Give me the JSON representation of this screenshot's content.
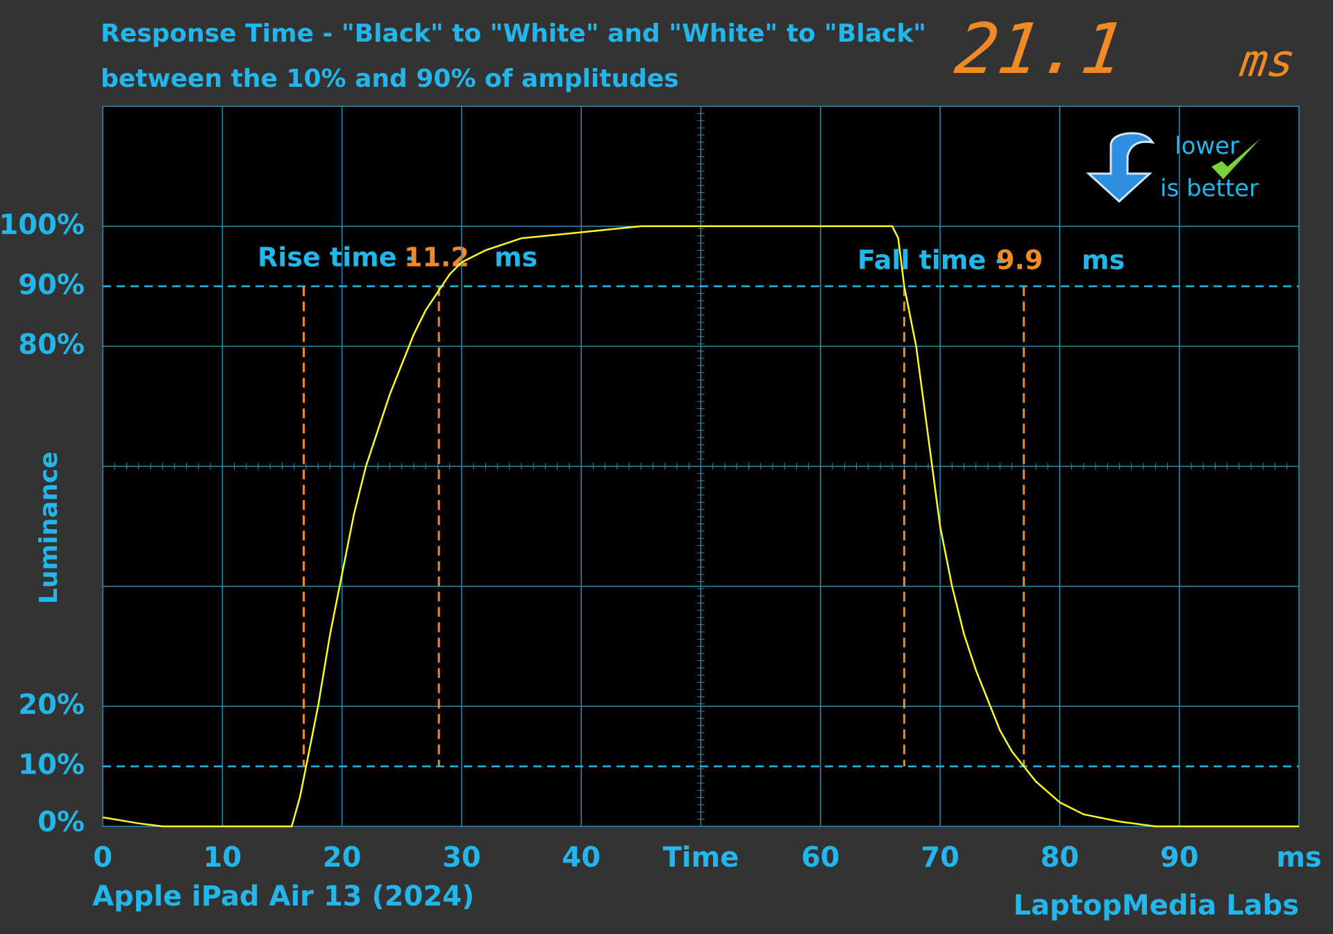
{
  "chart_data": {
    "type": "line",
    "title": "Response Time - \"Black\" to \"White\" and \"White\" to \"Black\"",
    "subtitle": "between the 10% and 90% of amplitudes",
    "headline_value": "21.1",
    "headline_unit": "ms",
    "y_label": "Luminance",
    "device": "Apple iPad Air 13 (2024)",
    "source": "LaptopMedia Labs",
    "badge_line1": "lower",
    "badge_line2": "is better",
    "rise_label": "Rise time -",
    "rise_value": 11.2,
    "rise_unit": "ms",
    "fall_label": "Fall time -",
    "fall_value": 9.9,
    "fall_unit": "ms",
    "color": "#ffff22",
    "x": [
      0,
      3,
      5,
      15.8,
      16.5,
      17,
      18,
      19,
      20,
      21,
      22,
      23,
      24,
      25,
      26,
      27,
      28,
      29,
      30,
      32,
      35,
      40,
      45,
      66,
      66.5,
      67,
      68,
      69,
      70,
      71,
      72,
      73,
      74,
      75,
      76,
      77,
      78,
      80,
      82,
      85,
      88,
      100
    ],
    "values": [
      1.5,
      0.5,
      0,
      0,
      5,
      10,
      20,
      32,
      42,
      52,
      60,
      66,
      72,
      77,
      82,
      86,
      89,
      92,
      94,
      96,
      98,
      99,
      100,
      100,
      98,
      90,
      80,
      65,
      50,
      40,
      32,
      26,
      21,
      16,
      12.5,
      10,
      7.5,
      4,
      2,
      0.8,
      0,
      0
    ],
    "xlim": [
      0,
      100
    ],
    "ylim": [
      0,
      120
    ],
    "xticks": [
      0,
      10,
      20,
      30,
      40,
      {
        "value": 50,
        "label": "Time"
      },
      60,
      70,
      80,
      90,
      {
        "value": 100,
        "label": "ms"
      }
    ],
    "yticks": [
      {
        "value": 0,
        "label": "0%"
      },
      {
        "value": 10,
        "label": "10%"
      },
      {
        "value": 20,
        "label": "20%"
      },
      {
        "value": 80,
        "label": "80%"
      },
      {
        "value": 90,
        "label": "90%"
      },
      {
        "value": 100,
        "label": "100%"
      }
    ],
    "ygrid": [
      0,
      20,
      40,
      60,
      80,
      100,
      120
    ],
    "reference_lines": [
      10,
      90
    ],
    "markers": [
      16.8,
      28.1,
      67,
      77
    ]
  }
}
